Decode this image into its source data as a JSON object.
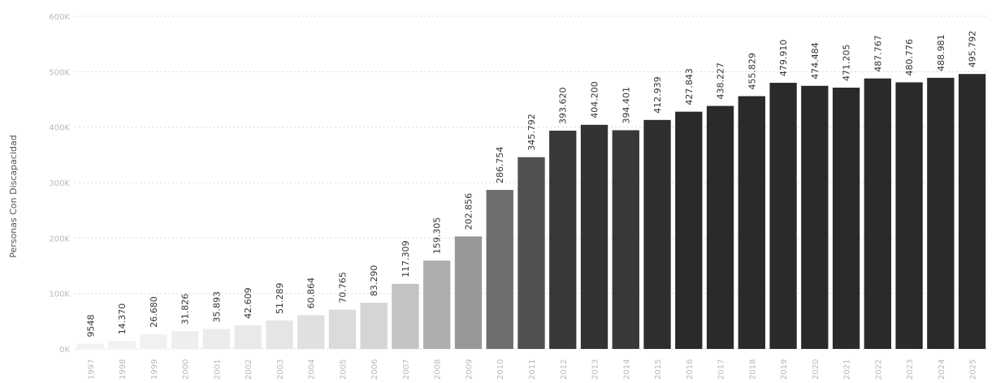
{
  "chart_data": {
    "type": "bar",
    "ylabel": "Personas Con Discapacidad",
    "ylim": [
      0,
      600000
    ],
    "yticks": [
      {
        "value": 0,
        "label": "0K"
      },
      {
        "value": 100000,
        "label": "100K"
      },
      {
        "value": 200000,
        "label": "200K"
      },
      {
        "value": 300000,
        "label": "300K"
      },
      {
        "value": 400000,
        "label": "400K"
      },
      {
        "value": 500000,
        "label": "500K"
      },
      {
        "value": 600000,
        "label": "600K"
      }
    ],
    "grid": true,
    "categories": [
      "1997",
      "1998",
      "1999",
      "2000",
      "2001",
      "2002",
      "2003",
      "2004",
      "2005",
      "2006",
      "2007",
      "2008",
      "2009",
      "2010",
      "2011",
      "2012",
      "2013",
      "2014",
      "2015",
      "2016",
      "2017",
      "2018",
      "2019",
      "2020",
      "2021",
      "2022",
      "2023",
      "2024",
      "2025"
    ],
    "values": [
      9548,
      14370,
      26680,
      31826,
      35893,
      42609,
      51289,
      60864,
      70765,
      83290,
      117309,
      159305,
      202856,
      286754,
      345792,
      393620,
      404200,
      394401,
      412939,
      427843,
      438227,
      455829,
      479910,
      474484,
      471205,
      487767,
      480776,
      488981,
      495792
    ],
    "data_labels": [
      "9548",
      "14.370",
      "26.680",
      "31.826",
      "35.893",
      "42.609",
      "51.289",
      "60.864",
      "70.765",
      "83.290",
      "117.309",
      "159.305",
      "202.856",
      "286.754",
      "345.792",
      "393.620",
      "404.200",
      "394.401",
      "412.939",
      "427.843",
      "438.227",
      "455.829",
      "479.910",
      "474.484",
      "471.205",
      "487.767",
      "480.776",
      "488.981",
      "495.792"
    ],
    "color_scale": {
      "low": "#f2f2f5",
      "high": "#2a2a2a"
    }
  }
}
